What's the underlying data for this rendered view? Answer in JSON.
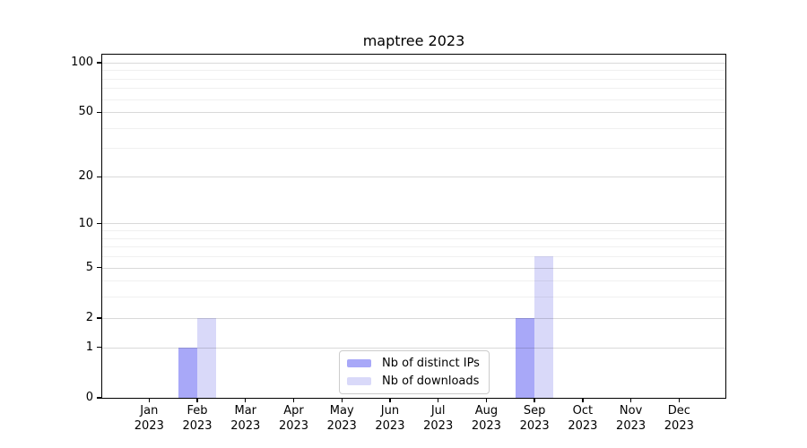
{
  "title": "maptree 2023",
  "chart_data": {
    "type": "bar",
    "title": "maptree 2023",
    "categories": [
      "Jan 2023",
      "Feb 2023",
      "Mar 2023",
      "Apr 2023",
      "May 2023",
      "Jun 2023",
      "Jul 2023",
      "Aug 2023",
      "Sep 2023",
      "Oct 2023",
      "Nov 2023",
      "Dec 2023"
    ],
    "series": [
      {
        "name": "Nb of distinct IPs",
        "color": "#a8a8f8",
        "values": [
          0,
          1,
          0,
          0,
          0,
          0,
          0,
          0,
          2,
          0,
          0,
          0
        ]
      },
      {
        "name": "Nb of downloads",
        "color": "#d9d9f9",
        "values": [
          0,
          2,
          0,
          0,
          0,
          0,
          0,
          0,
          6,
          0,
          0,
          0
        ]
      }
    ],
    "xlabel": "",
    "ylabel": "",
    "yscale": "log1p",
    "ylim": [
      0,
      112
    ],
    "y_major_ticks": [
      0,
      1,
      2,
      5,
      10,
      20,
      50,
      100
    ],
    "y_minor_gridlines": [
      3,
      4,
      6,
      7,
      8,
      9,
      30,
      40,
      60,
      70,
      80,
      90
    ],
    "grid": true,
    "legend_position": "lower center"
  },
  "colors": {
    "grid_major": "rgba(0,0,0,0.15)",
    "grid_minor": "rgba(0,0,0,0.06)",
    "axis": "#000000",
    "text": "#000000",
    "legend_border": "#cccccc",
    "background": "#ffffff"
  }
}
